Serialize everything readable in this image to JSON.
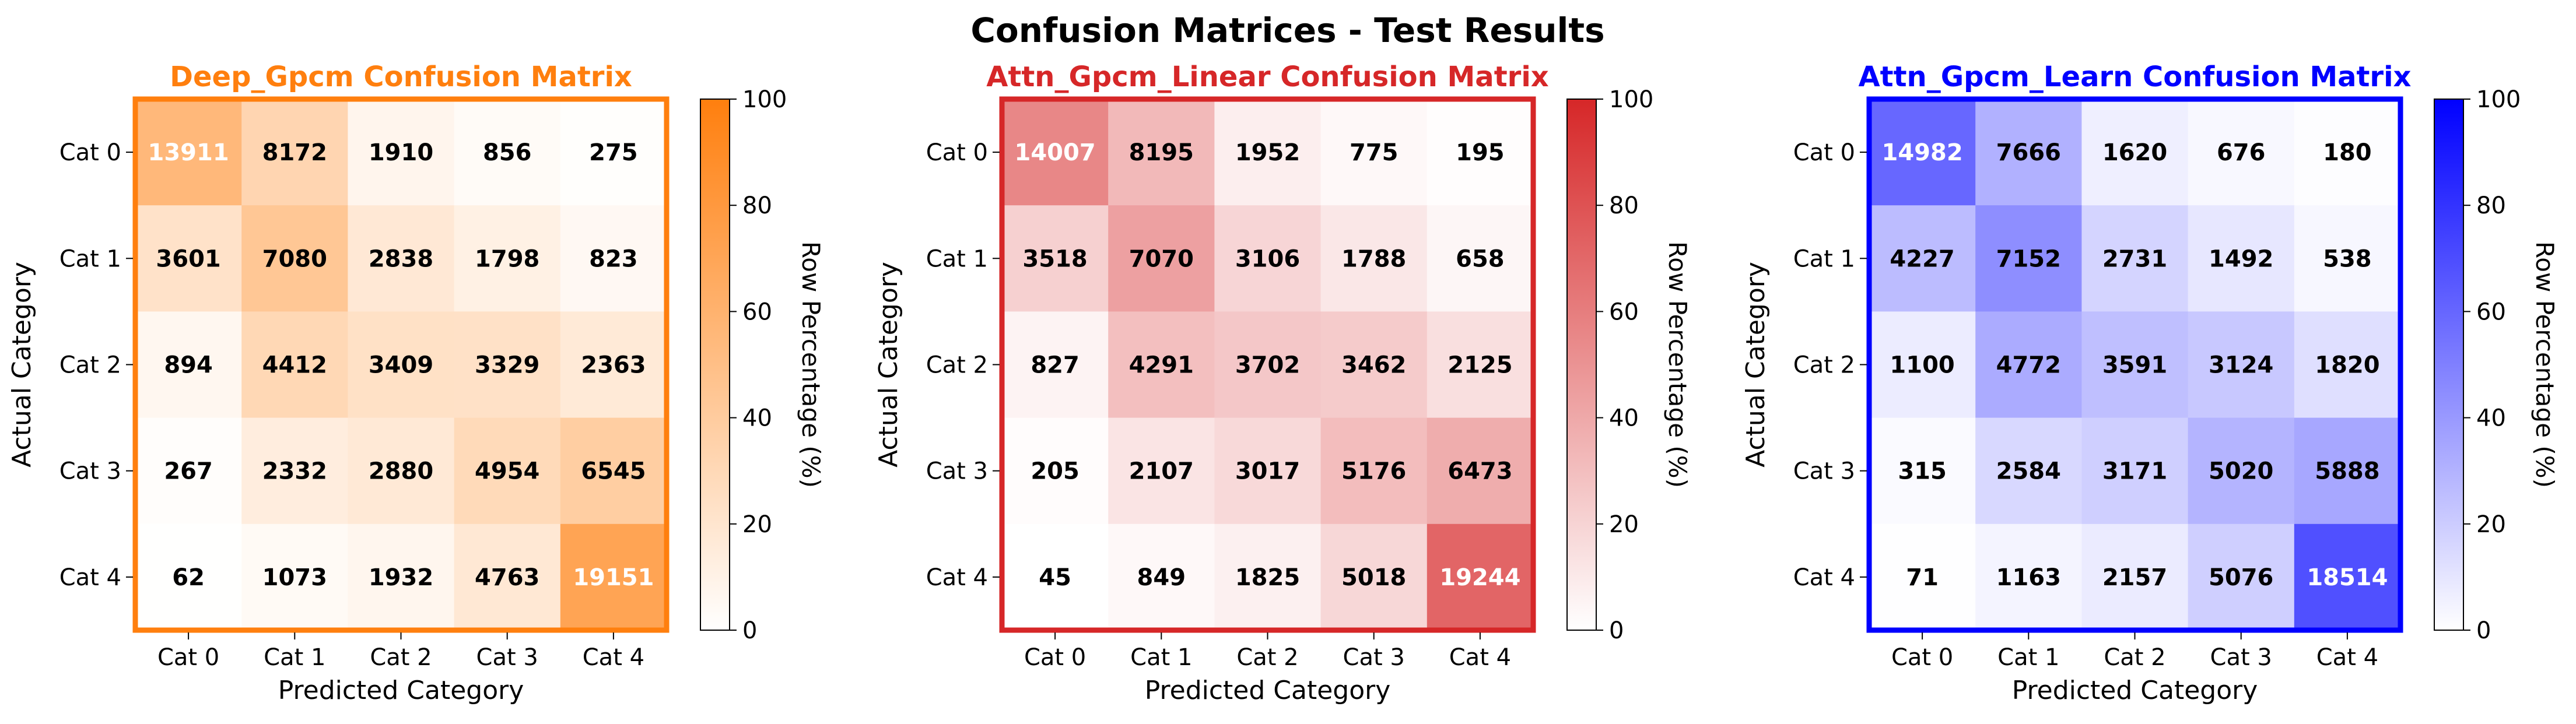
{
  "figure": {
    "suptitle": "Confusion Matrices - Test Results"
  },
  "chart_data": [
    {
      "type": "heatmap",
      "title": "Deep_Gpcm Confusion Matrix",
      "accent": "#ff7f0e",
      "xlabel": "Predicted Category",
      "ylabel": "Actual Category",
      "x_categories": [
        "Cat 0",
        "Cat 1",
        "Cat 2",
        "Cat 3",
        "Cat 4"
      ],
      "y_categories": [
        "Cat 0",
        "Cat 1",
        "Cat 2",
        "Cat 3",
        "Cat 4"
      ],
      "values": [
        [
          13911,
          8172,
          1910,
          856,
          275
        ],
        [
          3601,
          7080,
          2838,
          1798,
          823
        ],
        [
          894,
          4412,
          3409,
          3329,
          2363
        ],
        [
          267,
          2332,
          2880,
          4954,
          6545
        ],
        [
          62,
          1073,
          1932,
          4763,
          19151
        ]
      ],
      "colorbar": {
        "label": "Row Percentage (%)",
        "range": [
          0,
          100
        ],
        "ticks": [
          "0",
          "20",
          "40",
          "60",
          "80",
          "100"
        ]
      }
    },
    {
      "type": "heatmap",
      "title": "Attn_Gpcm_Linear Confusion Matrix",
      "accent": "#d62728",
      "xlabel": "Predicted Category",
      "ylabel": "Actual Category",
      "x_categories": [
        "Cat 0",
        "Cat 1",
        "Cat 2",
        "Cat 3",
        "Cat 4"
      ],
      "y_categories": [
        "Cat 0",
        "Cat 1",
        "Cat 2",
        "Cat 3",
        "Cat 4"
      ],
      "values": [
        [
          14007,
          8195,
          1952,
          775,
          195
        ],
        [
          3518,
          7070,
          3106,
          1788,
          658
        ],
        [
          827,
          4291,
          3702,
          3462,
          2125
        ],
        [
          205,
          2107,
          3017,
          5176,
          6473
        ],
        [
          45,
          849,
          1825,
          5018,
          19244
        ]
      ],
      "colorbar": {
        "label": "Row Percentage (%)",
        "range": [
          0,
          100
        ],
        "ticks": [
          "0",
          "20",
          "40",
          "60",
          "80",
          "100"
        ]
      }
    },
    {
      "type": "heatmap",
      "title": "Attn_Gpcm_Learn Confusion Matrix",
      "accent": "#0000ff",
      "xlabel": "Predicted Category",
      "ylabel": "Actual Category",
      "x_categories": [
        "Cat 0",
        "Cat 1",
        "Cat 2",
        "Cat 3",
        "Cat 4"
      ],
      "y_categories": [
        "Cat 0",
        "Cat 1",
        "Cat 2",
        "Cat 3",
        "Cat 4"
      ],
      "values": [
        [
          14982,
          7666,
          1620,
          676,
          180
        ],
        [
          4227,
          7152,
          2731,
          1492,
          538
        ],
        [
          1100,
          4772,
          3591,
          3124,
          1820
        ],
        [
          315,
          2584,
          3171,
          5020,
          5888
        ],
        [
          71,
          1163,
          2157,
          5076,
          18514
        ]
      ],
      "colorbar": {
        "label": "Row Percentage (%)",
        "range": [
          0,
          100
        ],
        "ticks": [
          "0",
          "20",
          "40",
          "60",
          "80",
          "100"
        ]
      }
    }
  ]
}
